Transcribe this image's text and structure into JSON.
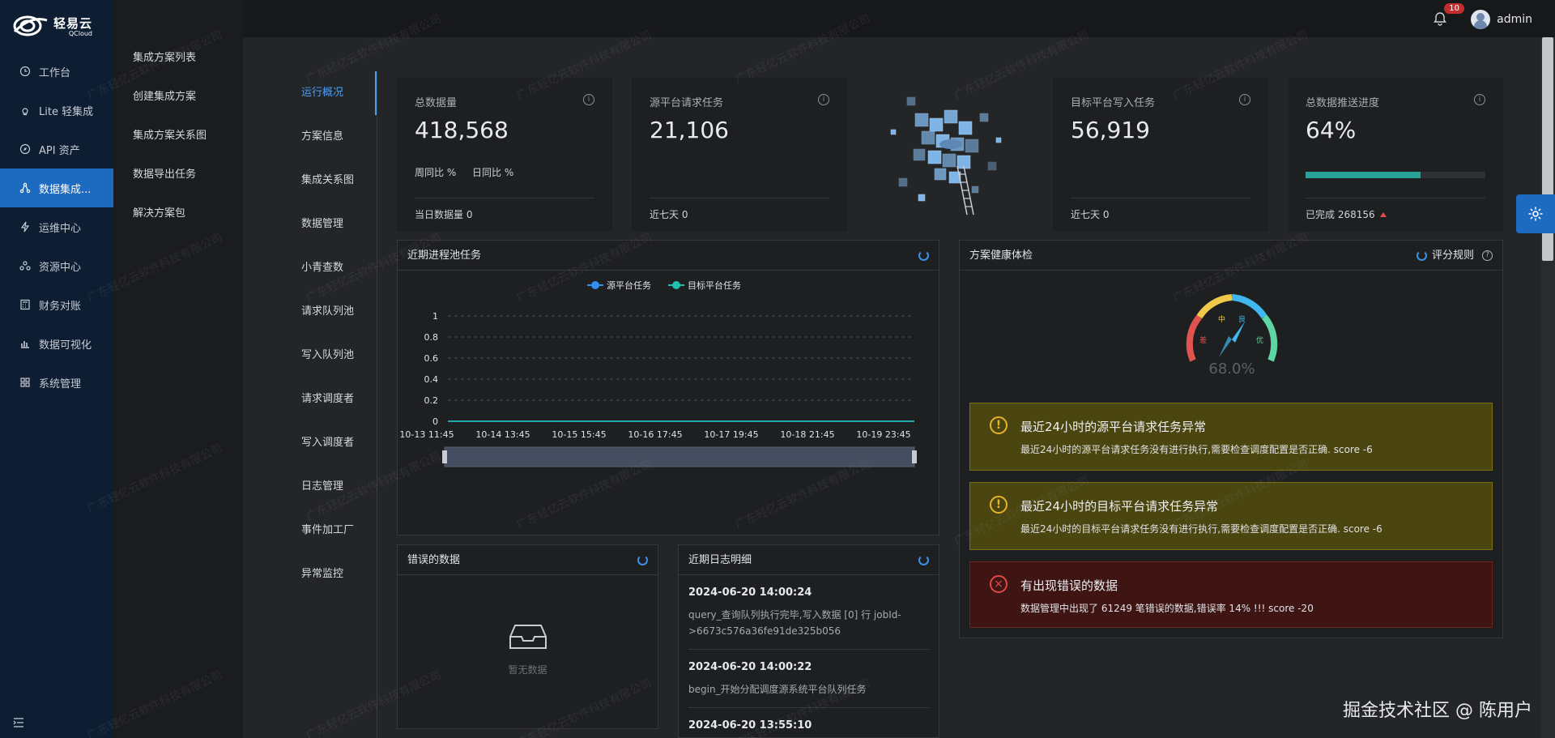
{
  "app": {
    "logo_cn": "轻易云",
    "logo_en": "QCloud"
  },
  "sidebar": {
    "items": [
      {
        "label": "工作台",
        "icon": "clock-icon"
      },
      {
        "label": "Lite 轻集成",
        "icon": "bulb-icon"
      },
      {
        "label": "API 资产",
        "icon": "compass-icon"
      },
      {
        "label": "数据集成...",
        "icon": "share-icon",
        "active": true
      },
      {
        "label": "运维中心",
        "icon": "bolt-icon"
      },
      {
        "label": "资源中心",
        "icon": "cluster-icon"
      },
      {
        "label": "财务对账",
        "icon": "calculator-icon"
      },
      {
        "label": "数据可视化",
        "icon": "chart-icon"
      },
      {
        "label": "系统管理",
        "icon": "grid-icon"
      }
    ]
  },
  "submenu": {
    "items": [
      "集成方案列表",
      "创建集成方案",
      "集成方案关系图",
      "数据导出任务",
      "解决方案包"
    ]
  },
  "header": {
    "notification_count": "10",
    "username": "admin"
  },
  "tabs": [
    "运行概况",
    "方案信息",
    "集成关系图",
    "数据管理",
    "小青查数",
    "请求队列池",
    "写入队列池",
    "请求调度者",
    "写入调度者",
    "日志管理",
    "事件加工厂",
    "异常监控"
  ],
  "stats": {
    "total": {
      "title": "总数据量",
      "value": "418,568",
      "week": "周同比 %",
      "day": "日同比 %",
      "foot": "当日数据量  0"
    },
    "source": {
      "title": "源平台请求任务",
      "value": "21,106",
      "foot": "近七天  0"
    },
    "target": {
      "title": "目标平台写入任务",
      "value": "56,919",
      "foot": "近七天  0"
    },
    "progress": {
      "title": "总数据推送进度",
      "value": "64%",
      "foot": "已完成 268156",
      "percent": 0.64
    }
  },
  "chart_panel": {
    "title": "近期进程池任务",
    "legend": [
      "源平台任务",
      "目标平台任务"
    ]
  },
  "chart_data": {
    "type": "line",
    "categories": [
      "10-13 11:45",
      "10-14 13:45",
      "10-15 15:45",
      "10-16 17:45",
      "10-17 19:45",
      "10-18 21:45",
      "10-19 23:45"
    ],
    "series": [
      {
        "name": "源平台任务",
        "values": [
          0,
          0,
          0,
          0,
          0,
          0,
          0
        ],
        "color": "#2f8ff0"
      },
      {
        "name": "目标平台任务",
        "values": [
          0,
          0,
          0,
          0,
          0,
          0,
          0
        ],
        "color": "#1fc0b0"
      }
    ],
    "y_ticks": [
      "1",
      "0.8",
      "0.6",
      "0.4",
      "0.2",
      "0"
    ],
    "ylim": [
      0,
      1
    ],
    "grid": true,
    "legend_position": "top-center"
  },
  "health": {
    "title": "方案健康体检",
    "rule_label": "评分规则",
    "gauge_value": "68.0%",
    "gauge_percent": 0.68,
    "gauge_labels": [
      "差",
      "中",
      "良",
      "优"
    ],
    "alerts": [
      {
        "type": "warn",
        "title": "最近24小时的源平台请求任务异常",
        "desc": "最近24小时的源平台请求任务没有进行执行,需要检查调度配置是否正确. score -6"
      },
      {
        "type": "warn",
        "title": "最近24小时的目标平台请求任务异常",
        "desc": "最近24小时的目标平台请求任务没有进行执行,需要检查调度配置是否正确. score -6"
      },
      {
        "type": "err",
        "title": "有出现错误的数据",
        "desc": "数据管理中出现了 61249 笔错误的数据,错误率 14% !!! score -20"
      }
    ]
  },
  "errors_panel": {
    "title": "错误的数据",
    "empty": "暂无数据"
  },
  "logs_panel": {
    "title": "近期日志明细",
    "items": [
      {
        "time": "2024-06-20 14:00:24",
        "text": "query_查询队列执行完毕,写入数据 [0] 行 jobId->6673c576a36fe91de325b056"
      },
      {
        "time": "2024-06-20 14:00:22",
        "text": "begin_开始分配调度源系统平台队列任务"
      },
      {
        "time": "2024-06-20 13:55:10",
        "text": ""
      }
    ]
  },
  "watermark": "广东轻亿云软件科技有限公司",
  "corner_brand": "掘金技术社区 @ 陈用户"
}
